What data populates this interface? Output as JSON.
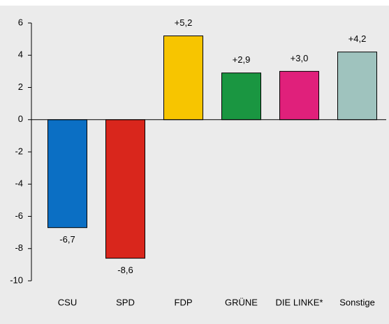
{
  "chart_data": {
    "type": "bar",
    "categories": [
      "CSU",
      "SPD",
      "FDP",
      "GRÜNE",
      "DIE LINKE*",
      "Sonstige"
    ],
    "values": [
      -6.7,
      -8.6,
      5.2,
      2.9,
      3.0,
      4.2
    ],
    "value_labels": [
      "-6,7",
      "-8,6",
      "+5,2",
      "+2,9",
      "+3,0",
      "+4,2"
    ],
    "colors": [
      "#0b6fc4",
      "#d9261c",
      "#f7c500",
      "#1a9641",
      "#e0207b",
      "#9fc3be"
    ],
    "ylim": [
      -10,
      6
    ],
    "yticks": [
      -10,
      -8,
      -6,
      -4,
      -2,
      0,
      2,
      4,
      6
    ]
  }
}
